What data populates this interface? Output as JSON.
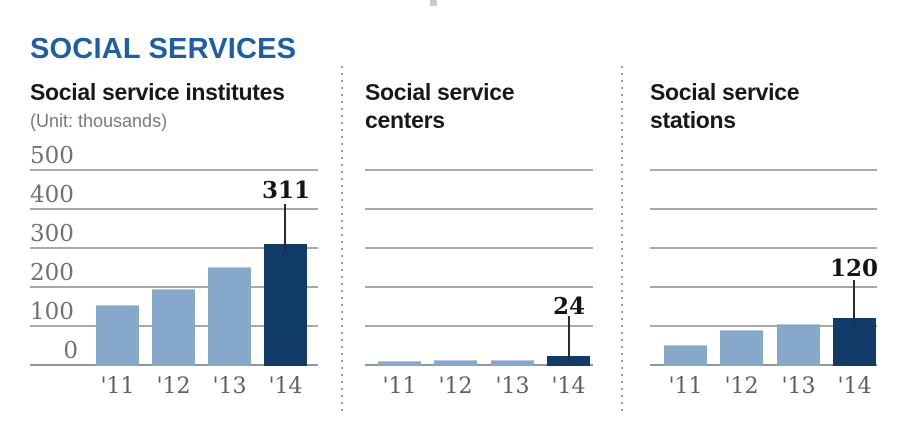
{
  "header": {
    "title": "SOCIAL SERVICES"
  },
  "colors": {
    "brand_blue": "#1d5fa6",
    "bar_light": "#86a8ca",
    "bar_dark": "#113b69",
    "gridline": "#a7aaad",
    "baseline": "#939699",
    "tick_text": "#6e7277",
    "xlabel_text": "#5b6066",
    "annotation_text": "#141414",
    "unit_text": "#75797e",
    "separator_dots": "#97999c"
  },
  "chart_data": [
    {
      "type": "bar",
      "title": "Social service institutes",
      "title_lines": [
        "Social service institutes",
        ""
      ],
      "unit": "(Unit: thousands)",
      "categories": [
        "'11",
        "'12",
        "'13",
        "'14"
      ],
      "values": [
        155,
        195,
        250,
        311
      ],
      "yticks": [
        500,
        400,
        300,
        200,
        100,
        0
      ],
      "ylim": [
        0,
        500
      ],
      "grid": true,
      "legend": "none",
      "highlight_category": "'14",
      "annotation": {
        "text": "311",
        "value": 311,
        "category": "'14"
      }
    },
    {
      "type": "bar",
      "title": "Social service centers",
      "title_lines": [
        "Social service",
        "centers"
      ],
      "unit": "",
      "categories": [
        "'11",
        "'12",
        "'13",
        "'14"
      ],
      "values": [
        11,
        12,
        14,
        24
      ],
      "yticks": [],
      "ylim": [
        0,
        500
      ],
      "grid": true,
      "legend": "none",
      "highlight_category": "'14",
      "annotation": {
        "text": "24",
        "value": 24,
        "category": "'14"
      }
    },
    {
      "type": "bar",
      "title": "Social service stations",
      "title_lines": [
        "Social service",
        "stations"
      ],
      "unit": "",
      "categories": [
        "'11",
        "'12",
        "'13",
        "'14"
      ],
      "values": [
        50,
        90,
        105,
        120
      ],
      "yticks": [],
      "ylim": [
        0,
        500
      ],
      "grid": true,
      "legend": "none",
      "highlight_category": "'14",
      "annotation": {
        "text": "120",
        "value": 120,
        "category": "'14"
      }
    }
  ]
}
